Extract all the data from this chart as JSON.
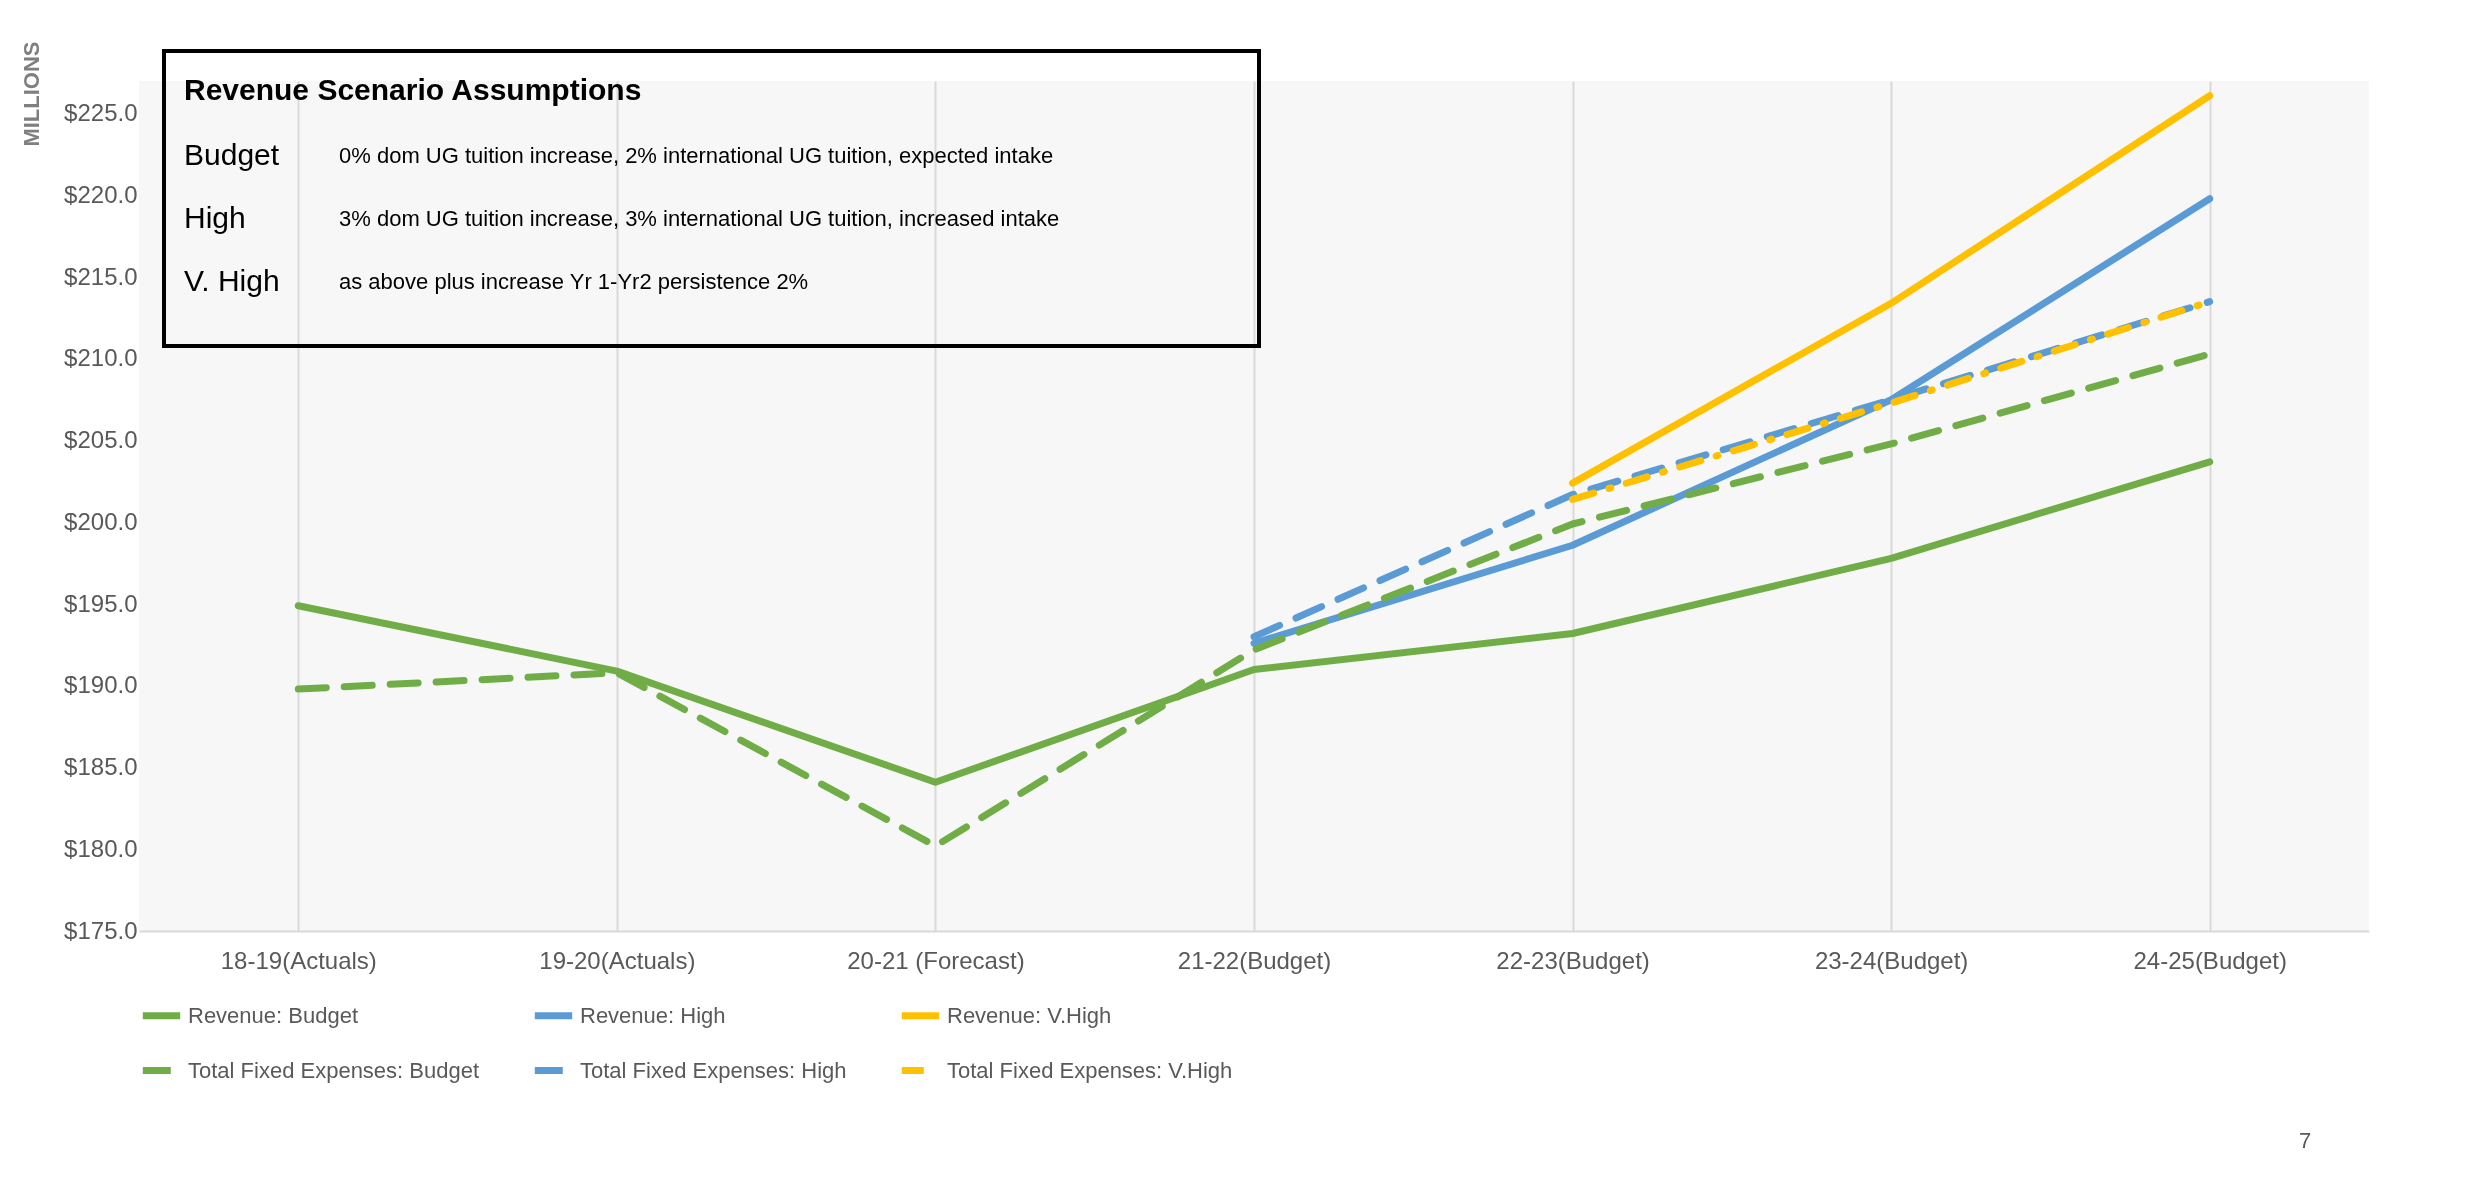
{
  "chart_data": {
    "type": "line",
    "ylabel": "MILLIONS",
    "categories": [
      "18-19(Actuals)",
      "19-20(Actuals)",
      "20-21 (Forecast)",
      "21-22(Budget)",
      "22-23(Budget)",
      "23-24(Budget)",
      "24-25(Budget)"
    ],
    "series": [
      {
        "name": "Revenue: Budget",
        "color": "#70ad47",
        "line_style": "solid",
        "values": [
          194.9,
          190.9,
          184.1,
          191.0,
          193.2,
          197.8,
          203.7
        ]
      },
      {
        "name": "Revenue: High",
        "color": "#5b9bd5",
        "line_style": "solid",
        "values": [
          null,
          null,
          null,
          192.6,
          198.6,
          207.5,
          219.8
        ]
      },
      {
        "name": "Revenue: V.High",
        "color": "#ffc000",
        "line_style": "solid",
        "values": [
          null,
          null,
          null,
          null,
          202.4,
          213.4,
          226.1
        ]
      },
      {
        "name": "Total Fixed Expenses: Budget",
        "color": "#70ad47",
        "line_style": "dashed",
        "values": [
          189.8,
          190.8,
          180.2,
          192.2,
          199.9,
          204.8,
          210.3
        ]
      },
      {
        "name": "Total Fixed Expenses: High",
        "color": "#5b9bd5",
        "line_style": "dashed",
        "values": [
          null,
          null,
          null,
          193.0,
          201.7,
          207.5,
          213.5
        ]
      },
      {
        "name": "Total Fixed Expenses: V.High",
        "color": "#ffc000",
        "line_style": "dotted",
        "values": [
          null,
          null,
          null,
          null,
          201.4,
          207.3,
          213.5
        ]
      }
    ],
    "ylim": [
      175,
      227
    ],
    "yticks": [
      {
        "value": 175,
        "label": "$175.0"
      },
      {
        "value": 180,
        "label": "$180.0"
      },
      {
        "value": 185,
        "label": "$185.0"
      },
      {
        "value": 190,
        "label": "$190.0"
      },
      {
        "value": 195,
        "label": "$195.0"
      },
      {
        "value": 200,
        "label": "$200.0"
      },
      {
        "value": 205,
        "label": "$205.0"
      },
      {
        "value": 210,
        "label": "$210.0"
      },
      {
        "value": 215,
        "label": "$215.0"
      },
      {
        "value": 220,
        "label": "$220.0"
      },
      {
        "value": 225,
        "label": "$225.0"
      }
    ],
    "grid": "x",
    "legend": "bottom",
    "annotations": [
      "Revenue Scenario Assumptions",
      "Budget",
      "0% dom UG tuition increase, 2% international UG tuition, expected intake",
      "High",
      "3% dom UG tuition increase, 3% international UG tuition, increased intake",
      "V. High",
      "as above plus increase Yr 1-Yr2 persistence 2%",
      "7"
    ]
  }
}
